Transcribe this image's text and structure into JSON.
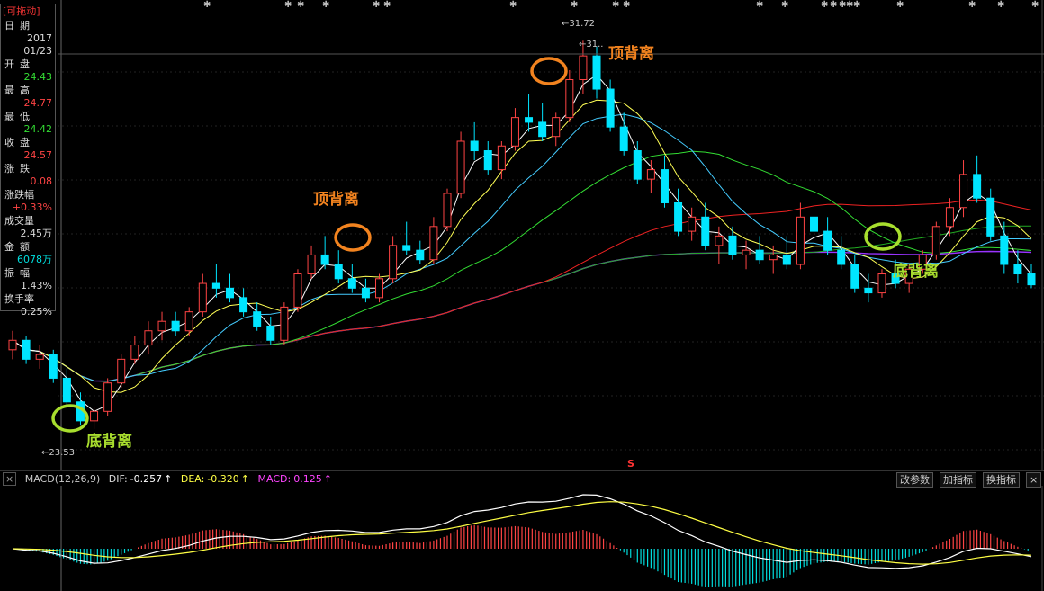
{
  "panel": {
    "header": "[可拖动]",
    "rows": [
      {
        "label": "日期",
        "values": [
          {
            "text": "2017",
            "color": "wht"
          },
          {
            "text": "01/23",
            "color": "wht"
          }
        ]
      },
      {
        "label": "开盘",
        "values": [
          {
            "text": "24.43",
            "color": "grn"
          }
        ]
      },
      {
        "label": "最高",
        "values": [
          {
            "text": "24.77",
            "color": "red"
          }
        ]
      },
      {
        "label": "最低",
        "values": [
          {
            "text": "24.42",
            "color": "grn"
          }
        ]
      },
      {
        "label": "收盘",
        "values": [
          {
            "text": "24.57",
            "color": "red"
          }
        ]
      },
      {
        "label": "涨跌",
        "values": [
          {
            "text": "0.08",
            "color": "red"
          }
        ]
      },
      {
        "label": "涨跌幅",
        "values": [
          {
            "text": "+0.33%",
            "color": "red"
          }
        ]
      },
      {
        "label": "成交量",
        "values": [
          {
            "text": "2.45万",
            "color": "wht"
          }
        ]
      },
      {
        "label": "金额",
        "values": [
          {
            "text": "6078万",
            "color": "cyn"
          }
        ]
      },
      {
        "label": "振幅",
        "values": [
          {
            "text": "1.43%",
            "color": "wht"
          }
        ]
      },
      {
        "label": "换手率",
        "values": [
          {
            "text": "0.25%",
            "color": "wht"
          }
        ]
      }
    ]
  },
  "price_labels": {
    "high": "31.72",
    "high2": "31..",
    "low": "23.53"
  },
  "annotations": {
    "bottom1": "底背离",
    "top1": "顶背离",
    "top2": "顶背离",
    "bottom2": "底背离"
  },
  "macd_bar": {
    "name": "MACD(12,26,9)",
    "dif_label": "DIF:",
    "dif": "-0.257",
    "dea_label": "DEA:",
    "dea": "-0.320",
    "macd_label": "MACD:",
    "macd": "0.125",
    "arrow": "↑",
    "buttons": [
      "改参数",
      "加指标",
      "换指标"
    ],
    "close": "×"
  },
  "marker_s": "S",
  "star_glyph": "✱",
  "colors": {
    "up": "#ff4444",
    "down": "#00e5ff",
    "ma5": "#ffffff",
    "ma10": "#ffff55",
    "ma20": "#44ccff",
    "ma30": "#33dd33",
    "ma60": "#ee2222",
    "ma120": "#22aa22",
    "ma250": "#9933ff",
    "annot_orange": "#f2831f",
    "annot_green": "#a8de2e"
  },
  "chart_data": {
    "type": "candlestick",
    "price_range": [
      22.9,
      32.2
    ],
    "candles": [
      [
        25.2,
        25.6,
        25.0,
        25.4
      ],
      [
        25.4,
        25.5,
        24.9,
        25.0
      ],
      [
        25.0,
        25.3,
        24.8,
        25.1
      ],
      [
        25.1,
        25.2,
        24.5,
        24.6
      ],
      [
        24.6,
        24.8,
        24.0,
        24.1
      ],
      [
        24.1,
        24.3,
        23.6,
        23.7
      ],
      [
        23.7,
        24.0,
        23.53,
        23.9
      ],
      [
        23.9,
        24.6,
        23.8,
        24.5
      ],
      [
        24.5,
        25.1,
        24.4,
        25.0
      ],
      [
        25.0,
        25.5,
        24.9,
        25.3
      ],
      [
        25.3,
        25.8,
        25.1,
        25.6
      ],
      [
        25.6,
        26.0,
        25.4,
        25.8
      ],
      [
        25.8,
        26.0,
        25.5,
        25.6
      ],
      [
        25.6,
        26.1,
        25.5,
        26.0
      ],
      [
        26.0,
        26.8,
        25.9,
        26.6
      ],
      [
        26.6,
        27.0,
        26.3,
        26.5
      ],
      [
        26.5,
        26.8,
        26.2,
        26.3
      ],
      [
        26.3,
        26.5,
        25.9,
        26.0
      ],
      [
        26.0,
        26.2,
        25.6,
        25.7
      ],
      [
        25.7,
        25.9,
        25.3,
        25.4
      ],
      [
        25.4,
        26.2,
        25.3,
        26.1
      ],
      [
        26.1,
        26.9,
        26.0,
        26.8
      ],
      [
        26.8,
        27.4,
        26.7,
        27.2
      ],
      [
        27.2,
        27.6,
        26.9,
        27.0
      ],
      [
        27.0,
        27.3,
        26.6,
        26.7
      ],
      [
        26.7,
        27.0,
        26.4,
        26.5
      ],
      [
        26.5,
        26.7,
        26.2,
        26.3
      ],
      [
        26.3,
        26.8,
        26.2,
        26.7
      ],
      [
        26.7,
        27.6,
        26.6,
        27.4
      ],
      [
        27.4,
        27.9,
        27.2,
        27.3
      ],
      [
        27.3,
        27.5,
        27.0,
        27.1
      ],
      [
        27.1,
        28.0,
        27.0,
        27.8
      ],
      [
        27.8,
        28.6,
        27.7,
        28.5
      ],
      [
        28.5,
        29.8,
        28.4,
        29.6
      ],
      [
        29.6,
        30.0,
        29.2,
        29.4
      ],
      [
        29.4,
        29.6,
        28.9,
        29.0
      ],
      [
        29.0,
        29.6,
        28.8,
        29.5
      ],
      [
        29.5,
        30.3,
        29.4,
        30.1
      ],
      [
        30.1,
        30.6,
        29.8,
        30.0
      ],
      [
        30.0,
        30.4,
        29.6,
        29.7
      ],
      [
        29.7,
        30.2,
        29.5,
        30.1
      ],
      [
        30.1,
        31.1,
        30.0,
        30.9
      ],
      [
        30.9,
        31.72,
        30.6,
        31.4
      ],
      [
        31.4,
        31.6,
        30.5,
        30.7
      ],
      [
        30.7,
        30.9,
        29.8,
        29.9
      ],
      [
        29.9,
        30.2,
        29.3,
        29.4
      ],
      [
        29.4,
        29.6,
        28.7,
        28.8
      ],
      [
        28.8,
        29.2,
        28.5,
        29.0
      ],
      [
        29.0,
        29.3,
        28.2,
        28.3
      ],
      [
        28.3,
        28.6,
        27.6,
        27.7
      ],
      [
        27.7,
        28.2,
        27.5,
        28.0
      ],
      [
        28.0,
        28.3,
        27.3,
        27.4
      ],
      [
        27.4,
        27.8,
        27.0,
        27.6
      ],
      [
        27.6,
        27.8,
        27.1,
        27.2
      ],
      [
        27.2,
        27.5,
        26.9,
        27.3
      ],
      [
        27.3,
        27.6,
        27.0,
        27.1
      ],
      [
        27.1,
        27.4,
        26.8,
        27.2
      ],
      [
        27.2,
        27.6,
        26.9,
        27.0
      ],
      [
        27.0,
        28.3,
        26.9,
        28.0
      ],
      [
        28.0,
        28.4,
        27.6,
        27.7
      ],
      [
        27.7,
        28.0,
        27.2,
        27.3
      ],
      [
        27.3,
        27.6,
        26.9,
        27.0
      ],
      [
        27.0,
        27.2,
        26.4,
        26.5
      ],
      [
        26.5,
        26.8,
        26.2,
        26.4
      ],
      [
        26.4,
        26.9,
        26.3,
        26.8
      ],
      [
        26.8,
        27.1,
        26.5,
        26.6
      ],
      [
        26.6,
        27.0,
        26.4,
        26.9
      ],
      [
        26.9,
        27.3,
        26.8,
        27.2
      ],
      [
        27.2,
        27.9,
        27.1,
        27.8
      ],
      [
        27.8,
        28.4,
        27.6,
        28.2
      ],
      [
        28.2,
        29.2,
        28.0,
        28.9
      ],
      [
        28.9,
        29.3,
        28.3,
        28.4
      ],
      [
        28.4,
        28.6,
        27.5,
        27.6
      ],
      [
        27.6,
        27.9,
        26.8,
        27.0
      ],
      [
        27.0,
        27.3,
        26.6,
        26.8
      ],
      [
        26.8,
        27.0,
        26.5,
        26.57
      ]
    ],
    "series": [
      {
        "name": "MA5"
      },
      {
        "name": "MA10"
      },
      {
        "name": "MA20"
      },
      {
        "name": "MA30"
      },
      {
        "name": "MA60"
      },
      {
        "name": "MA120"
      },
      {
        "name": "MA250"
      }
    ]
  }
}
